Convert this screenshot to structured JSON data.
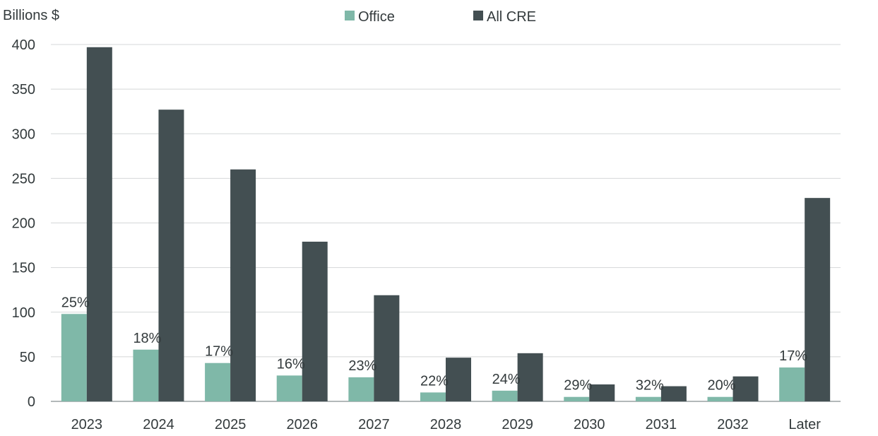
{
  "chart_data": {
    "type": "bar",
    "ylabel": "Billions $",
    "ylim": [
      0,
      400
    ],
    "yticks": [
      0,
      50,
      100,
      150,
      200,
      250,
      300,
      350,
      400
    ],
    "grid": true,
    "legend_position": "top-center",
    "categories": [
      "2023",
      "2024",
      "2025",
      "2026",
      "2027",
      "2028",
      "2029",
      "2030",
      "2031",
      "2032",
      "Later"
    ],
    "series": [
      {
        "name": "Office",
        "color": "#7fb8a8",
        "values": [
          98,
          58,
          43,
          29,
          27,
          10,
          12,
          5,
          5,
          5,
          38
        ]
      },
      {
        "name": "All CRE",
        "color": "#434f52",
        "values": [
          397,
          327,
          260,
          179,
          119,
          49,
          54,
          19,
          17,
          28,
          228
        ]
      }
    ],
    "annotations": [
      "25%",
      "18%",
      "17%",
      "16%",
      "23%",
      "22%",
      "24%",
      "29%",
      "32%",
      "20%",
      "17%"
    ]
  }
}
